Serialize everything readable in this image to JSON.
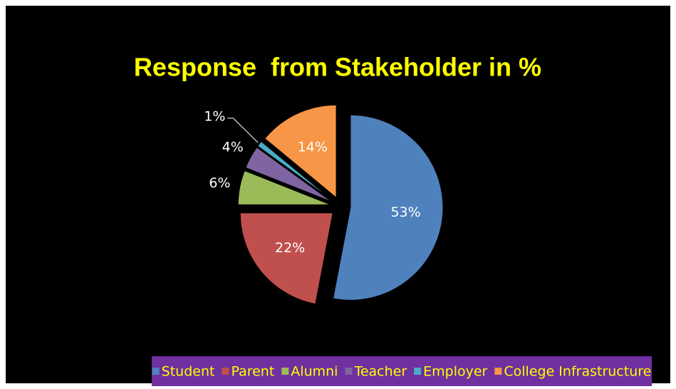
{
  "chart_data": {
    "type": "pie",
    "title": "Response  from Stakeholder in %",
    "categories": [
      "Student",
      "Parent",
      "Alumni",
      "Teacher",
      "Employer",
      "College Infrastructure"
    ],
    "values": [
      53,
      22,
      6,
      4,
      1,
      14
    ],
    "value_labels": [
      "53%",
      "22%",
      "6%",
      "4%",
      "1%",
      "14%"
    ],
    "colors": [
      "#4f81bd",
      "#c0504d",
      "#9bbb59",
      "#8064a2",
      "#4bacc6",
      "#f79646"
    ],
    "legend": "bottom"
  }
}
